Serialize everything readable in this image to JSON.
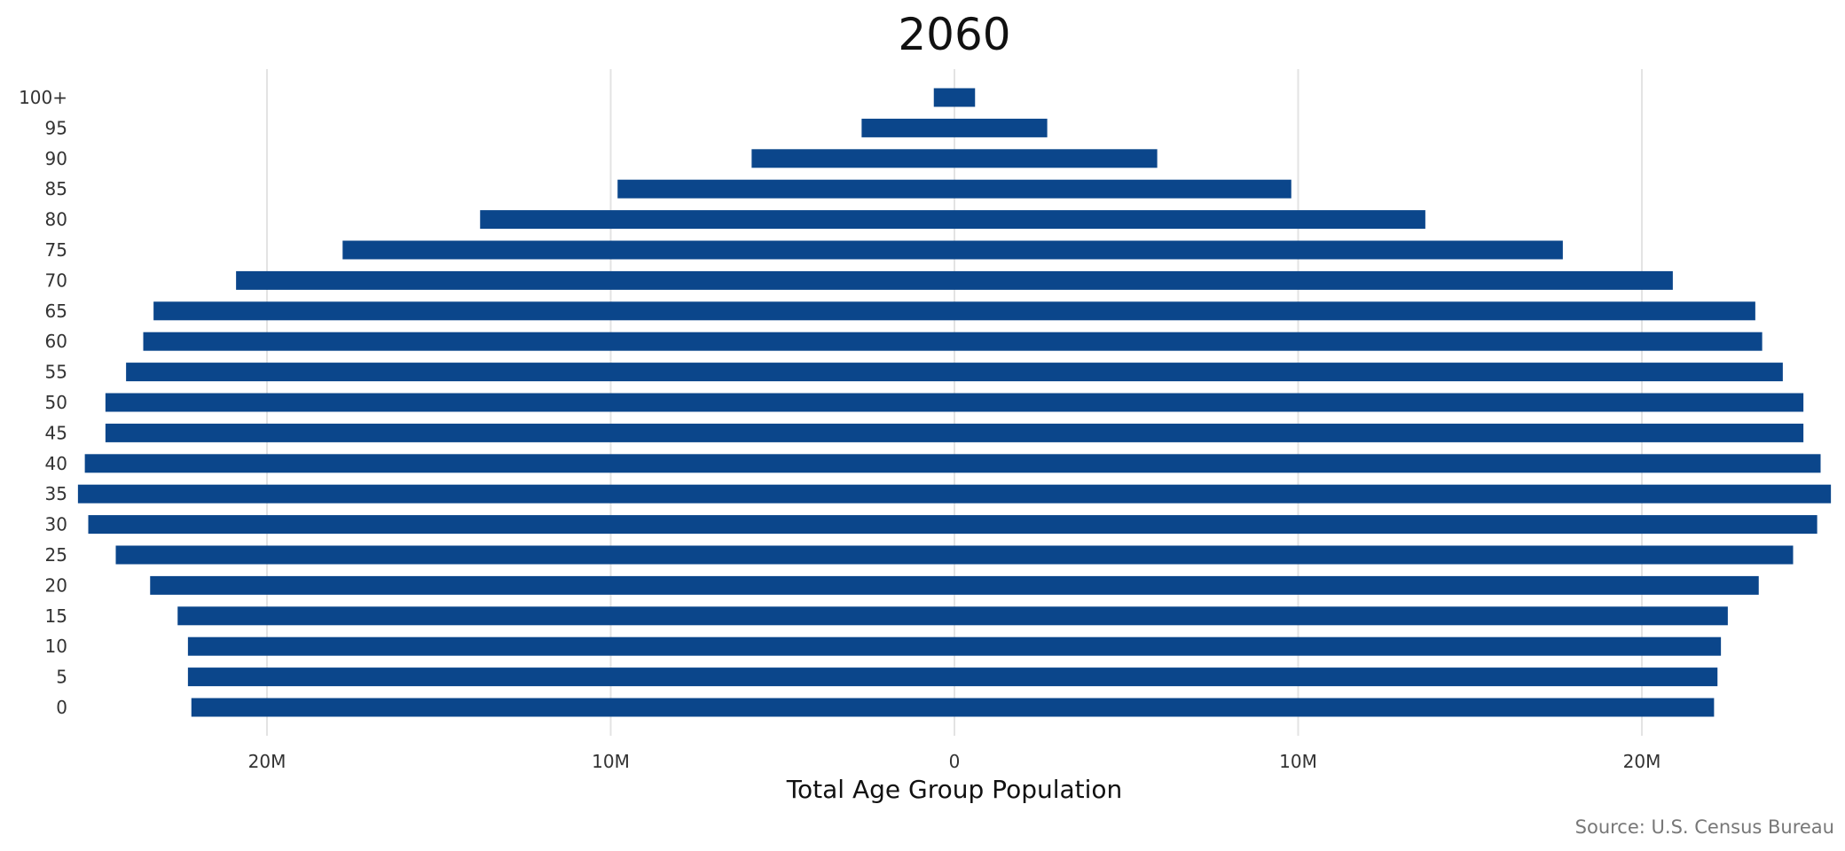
{
  "chart_data": {
    "type": "bar",
    "orientation": "horizontal",
    "layout": "population-pyramid",
    "title": "2060",
    "xlabel": "Total Age Group Population",
    "ylabel": "",
    "source": "Source: U.S. Census Bureau",
    "bar_color": "#0b468b",
    "grid_color": "#e3e3e3",
    "grid": true,
    "legend": "none",
    "xlim": [
      -25.5,
      25.5
    ],
    "x_ticks": [
      {
        "value": -20,
        "label": "20M"
      },
      {
        "value": -10,
        "label": "10M"
      },
      {
        "value": 0,
        "label": "0"
      },
      {
        "value": 10,
        "label": "10M"
      },
      {
        "value": 20,
        "label": "20M"
      }
    ],
    "categories": [
      "0",
      "5",
      "10",
      "15",
      "20",
      "25",
      "30",
      "35",
      "40",
      "45",
      "50",
      "55",
      "60",
      "65",
      "70",
      "75",
      "80",
      "85",
      "90",
      "95",
      "100+"
    ],
    "series": [
      {
        "side": "left",
        "values": [
          22.2,
          22.3,
          22.3,
          22.6,
          23.4,
          24.4,
          25.2,
          25.5,
          25.3,
          24.7,
          24.7,
          24.1,
          23.6,
          23.3,
          20.9,
          17.8,
          13.8,
          9.8,
          5.9,
          2.7,
          0.6
        ]
      },
      {
        "side": "right",
        "values": [
          22.1,
          22.2,
          22.3,
          22.5,
          23.4,
          24.4,
          25.1,
          25.5,
          25.2,
          24.7,
          24.7,
          24.1,
          23.5,
          23.3,
          20.9,
          17.7,
          13.7,
          9.8,
          5.9,
          2.7,
          0.6
        ]
      }
    ]
  }
}
